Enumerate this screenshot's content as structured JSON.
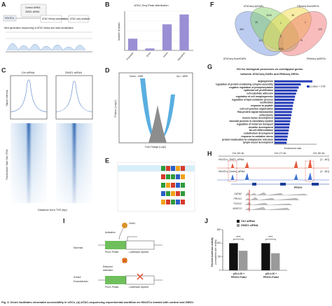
{
  "figure": {
    "caption": "Fig. 3. Zmiz1 facilitates chromatin accessibility in LECs. (A) ATAC-sequencing experimental workflow on HDLECs treated with control and ZMIZ1"
  },
  "panel_labels": [
    "A",
    "B",
    "C",
    "D",
    "E",
    "F",
    "G",
    "H",
    "I",
    "J"
  ],
  "panel_a": {
    "control": "Control siRNA",
    "treated": "ZMIZ1 siRNA",
    "cells": "HDLECs",
    "step1": "ATAC library preparation",
    "step2": "ATAC-seq analysis",
    "step3": "Next generation sequencing of ATAC library and data visualization"
  },
  "panel_c": {
    "conditions": [
      "Ctrl siRNA",
      "ZMIZ1 siRNA"
    ],
    "y_label_top": "Signal Intensity",
    "y_label_bottom": "Transcription Start Site (TSS)",
    "x_label": "Distance from TSS (bp)"
  },
  "panel_d": {
    "down": "Down - 3039",
    "up": "Up = 1809",
    "x_label": "Fold Change (Log2)",
    "y_label": "P.Value (-Log10)"
  },
  "panel_f": {
    "sets": [
      "ATACseq UpDARs",
      "RNAseq DownDEGs",
      "ATACseq DownDARs",
      "RNAseq UpDEGs"
    ],
    "counts": [
      "464",
      "3316",
      "35",
      "123",
      "26",
      "1",
      "2",
      "0",
      "112",
      "79",
      "3030"
    ]
  },
  "panel_h": {
    "coords": [
      "214,161 kb",
      "214,171 kb",
      "214,181 kb"
    ],
    "tracks": [
      "HDLECs_ZMIZ1_siRNA",
      "HDLECs_Control_siRNA"
    ],
    "ranges": [
      "[0 - 461]",
      "[0 - 461]"
    ],
    "gene": "PROX1",
    "genes": [
      "GATA2",
      "PROX1",
      "FOXC2",
      "NFATC3"
    ]
  },
  "panel_i": {
    "factor": "Zmiz1",
    "activation": "Activation",
    "normal": "Normal",
    "peaks": [
      "Prox1 Peaks",
      "Prox1 Peaks"
    ],
    "reporter": [
      "Luciferase reporter",
      "Luciferase reporter"
    ],
    "knockdown": [
      "Zmiz1",
      "Knockdown"
    ],
    "reduced": [
      "Reduced",
      "activation"
    ]
  },
  "chart_data": [
    {
      "type": "bar",
      "title": "ATAC-Seq Peak distribution",
      "y_label": "Number of peaks",
      "categories": [
        "Promoter",
        "Exon",
        "Intron",
        "Intergenic"
      ],
      "values": [
        9000,
        1500,
        20000,
        27500
      ],
      "color": "#9a8fd4",
      "ylim": [
        0,
        30000
      ],
      "grid": true
    },
    {
      "type": "barh",
      "title": [
        "GO for biological processes on overlapped genes",
        "between ATACseq DARs and RNAseq DEGs"
      ],
      "x_label": "Enrichment ratio",
      "categories": [
        "angiogenesis",
        "regulation of protein-containing complex assembly",
        "negative regulation of phosphorylation",
        "epithelial cell proliferation",
        "cell-substrate adhesion",
        "regulation of cell morphogenesis",
        "regulation of lipid metabolic process",
        "ossification",
        "response to peptide",
        "cell-cell junction organization",
        "Ras protein signal transduction",
        "endocytosis",
        "muscle tissue development",
        "vascular process in circulatory system",
        "regulation of metal ion transport",
        "dendrite development",
        "fat cell differentiation",
        "endothelium development",
        "response to oxidative stress",
        "protein localization to endoplasmic reticulum",
        "lymph vessel development"
      ],
      "series": [
        {
          "name": "p.value < 0.05",
          "color": "#2a3fb8",
          "values": [
            7.2,
            5.0,
            4.6,
            4.3,
            4.1,
            3.9,
            3.8,
            3.6,
            3.5,
            3.4,
            3.3,
            3.2,
            3.1,
            3.0,
            2.9,
            2.8,
            2.7,
            2.6,
            2.5,
            2.4,
            2.3
          ]
        }
      ],
      "xlim": [
        0,
        8
      ]
    },
    {
      "type": "bar",
      "y_label": [
        "Percent luciferase activity",
        "(normalized with renilla)"
      ],
      "categories": [
        [
          "pGL4.20 +",
          "PROX1 Peak1"
        ],
        [
          "pGL4.20 +",
          "PROX1 Peak2"
        ]
      ],
      "series": [
        {
          "name": "Ctrl siRNA",
          "color": "#111111",
          "values": [
            100,
            100
          ]
        },
        {
          "name": "ZMIZ1 siRNA",
          "color": "#9a9a9a",
          "values": [
            72,
            63
          ]
        }
      ],
      "significance": [
        "****",
        "****"
      ],
      "ylim": [
        0,
        150
      ],
      "yticks": [
        0,
        50,
        100,
        150
      ]
    }
  ]
}
